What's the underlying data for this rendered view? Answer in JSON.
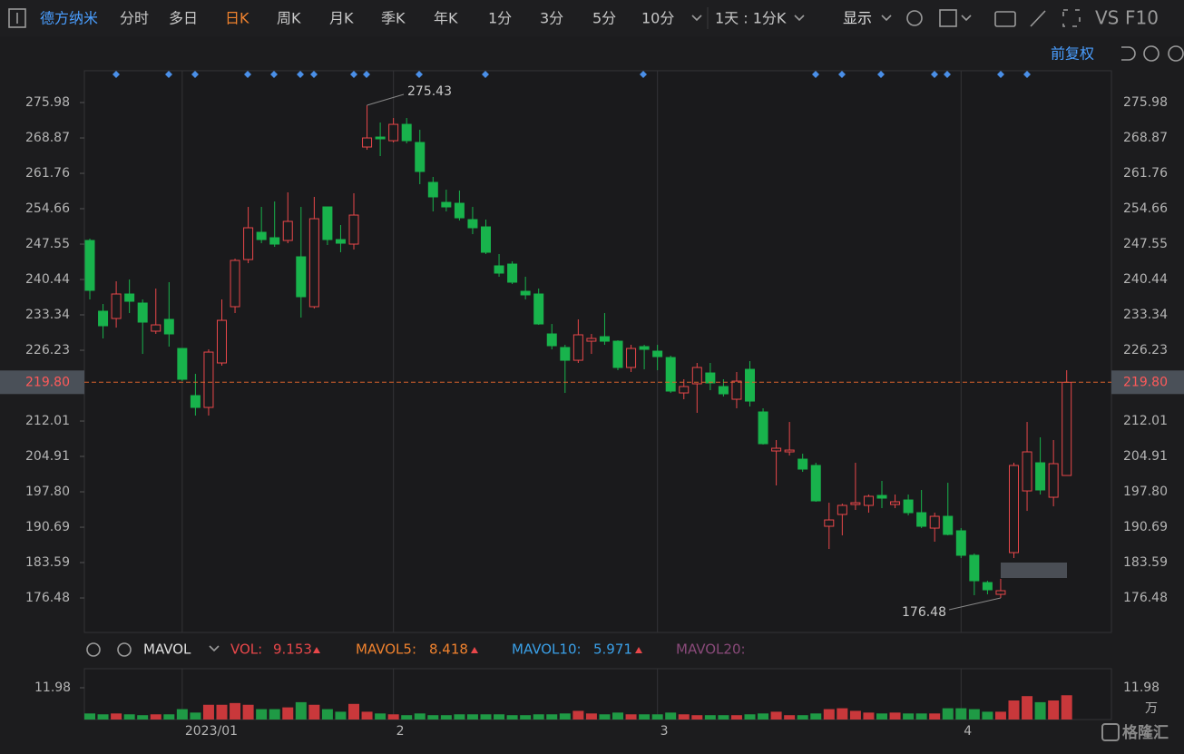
{
  "toolbar": {
    "stock_name": "德方纳米",
    "tabs": [
      "分时",
      "多日",
      "日K",
      "周K",
      "月K",
      "季K",
      "年K",
      "1分",
      "3分",
      "5分",
      "10分"
    ],
    "period": "1天 : 1分K",
    "display": "显示",
    "vs": "VS",
    "f10": "F10",
    "adjust": "前复权"
  },
  "chart_data": {
    "type": "candlestick",
    "categories": [
      null,
      null,
      null,
      null,
      null,
      null,
      null,
      "2023/01",
      null,
      null,
      null,
      null,
      null,
      null,
      null,
      null,
      null,
      null,
      null,
      null,
      null,
      null,
      null,
      "2",
      null,
      null,
      null,
      null,
      null,
      null,
      null,
      null,
      null,
      null,
      null,
      null,
      null,
      null,
      null,
      null,
      null,
      null,
      null,
      "3",
      null,
      null,
      null,
      null,
      null,
      null,
      null,
      null,
      null,
      null,
      null,
      null,
      null,
      null,
      null,
      null,
      null,
      null,
      null,
      null,
      null,
      null,
      "4",
      null,
      null,
      null,
      null,
      null,
      null,
      null,
      null
    ],
    "open": [
      248.28,
      234.07,
      232.61,
      237.53,
      235.71,
      230.06,
      232.43,
      226.59,
      217.12,
      214.75,
      223.68,
      234.98,
      244.45,
      249.92,
      248.83,
      248.28,
      245.0,
      234.98,
      255.02,
      248.46,
      247.55,
      267.05,
      269.05,
      268.32,
      271.6,
      267.96,
      259.94,
      255.93,
      255.75,
      252.47,
      251.01,
      243.18,
      243.54,
      238.07,
      237.53,
      229.51,
      226.78,
      224.22,
      228.05,
      228.96,
      228.05,
      222.77,
      226.96,
      226.05,
      224.77,
      217.66,
      219.49,
      221.67,
      218.94,
      216.39,
      222.4,
      213.84,
      206.0,
      205.82,
      204.36,
      203.09,
      190.88,
      193.25,
      195.25,
      195.07,
      197.07,
      195.25,
      196.16,
      193.61,
      190.51,
      192.88,
      189.97,
      185.05,
      179.58,
      177.21,
      185.59,
      197.98,
      203.63,
      196.71,
      201.08
    ],
    "high": [
      248.64,
      235.52,
      240.08,
      240.44,
      236.43,
      238.62,
      239.9,
      226.59,
      221.49,
      226.41,
      236.43,
      244.63,
      255.02,
      255.02,
      256.11,
      257.94,
      255.02,
      257.03,
      255.02,
      251.38,
      257.75,
      275.43,
      271.97,
      272.88,
      272.88,
      270.51,
      261.04,
      258.48,
      258.3,
      255.02,
      252.47,
      245.55,
      244.09,
      240.99,
      238.62,
      231.51,
      227.32,
      232.43,
      229.51,
      233.7,
      228.23,
      227.32,
      227.32,
      227.32,
      225.14,
      220.4,
      223.68,
      223.68,
      220.4,
      221.86,
      224.04,
      214.57,
      208.19,
      211.83,
      205.45,
      203.63,
      195.61,
      195.43,
      203.63,
      197.25,
      199.99,
      197.25,
      197.25,
      198.17,
      193.61,
      199.62,
      190.51,
      185.41,
      179.94,
      180.31,
      203.63,
      211.83,
      208.74,
      208.19,
      222.22
    ],
    "low": [
      236.43,
      228.6,
      230.78,
      233.7,
      225.5,
      229.51,
      226.96,
      220.03,
      213.11,
      213.11,
      223.13,
      233.7,
      243.72,
      247.73,
      247.0,
      247.73,
      232.79,
      234.61,
      247.37,
      245.91,
      246.46,
      266.5,
      265.23,
      267.96,
      267.78,
      259.58,
      254.11,
      254.11,
      252.29,
      249.55,
      245.55,
      240.99,
      239.53,
      236.43,
      231.33,
      226.41,
      217.66,
      223.68,
      225.5,
      227.32,
      222.22,
      221.86,
      222.4,
      222.22,
      217.66,
      216.39,
      213.66,
      218.21,
      216.94,
      214.57,
      214.93,
      207.28,
      199.08,
      205.09,
      201.81,
      195.8,
      186.32,
      189.05,
      194.16,
      193.61,
      194.52,
      194.52,
      193.06,
      190.51,
      187.78,
      189.05,
      184.5,
      177.03,
      177.21,
      176.48,
      184.5,
      193.97,
      197.25,
      194.89,
      201.08
    ],
    "close": [
      238.26,
      231.15,
      237.53,
      236.07,
      231.88,
      231.33,
      229.51,
      220.4,
      214.75,
      225.86,
      232.24,
      244.27,
      250.83,
      248.46,
      247.55,
      252.11,
      236.98,
      252.65,
      248.46,
      247.73,
      253.38,
      268.87,
      268.69,
      271.6,
      268.32,
      262.13,
      257.03,
      255.02,
      252.83,
      250.83,
      245.91,
      241.72,
      239.9,
      237.35,
      231.51,
      227.14,
      224.22,
      229.33,
      228.6,
      228.05,
      222.77,
      226.59,
      226.41,
      224.95,
      218.03,
      218.94,
      222.77,
      219.67,
      217.48,
      220.03,
      216.02,
      207.46,
      206.55,
      206.18,
      202.36,
      195.98,
      192.15,
      195.07,
      195.61,
      196.89,
      196.53,
      195.8,
      193.61,
      190.88,
      192.88,
      189.24,
      185.05,
      179.94,
      178.12,
      177.94,
      203.09,
      205.82,
      198.17,
      203.45,
      219.8
    ],
    "ylim": [
      169.56,
      282.36
    ],
    "yticks": [
      275.98,
      268.87,
      261.76,
      254.66,
      247.55,
      240.44,
      233.34,
      226.23,
      212.01,
      204.91,
      {
        "value": 197.8,
        "label": "197.80"
      },
      190.69,
      183.59,
      176.48
    ],
    "price_line": {
      "value": 219.8,
      "label": "219.80"
    },
    "up_color": "#e8474a",
    "down_color": "#18b34c",
    "volume": {
      "indicator": "MAVOL",
      "unit": "万",
      "ylim": [
        0,
        11.98
      ],
      "yticks": [
        11.98
      ],
      "values": [
        2.29,
        1.96,
        2.29,
        1.96,
        1.64,
        1.96,
        1.96,
        3.92,
        2.62,
        5.56,
        5.56,
        6.21,
        5.56,
        3.92,
        3.92,
        4.58,
        6.54,
        5.56,
        3.92,
        2.94,
        5.89,
        2.94,
        2.29,
        1.96,
        1.64,
        2.29,
        1.64,
        1.64,
        1.96,
        1.96,
        1.96,
        1.96,
        1.64,
        1.64,
        1.96,
        1.96,
        2.29,
        3.27,
        2.29,
        1.96,
        2.62,
        1.96,
        1.96,
        1.96,
        2.62,
        1.96,
        1.64,
        1.64,
        1.64,
        1.64,
        1.96,
        2.29,
        2.94,
        1.64,
        1.64,
        2.29,
        3.92,
        4.25,
        3.27,
        2.62,
        2.29,
        2.62,
        2.29,
        2.29,
        2.29,
        4.25,
        4.25,
        3.92,
        2.94,
        2.94,
        7.19,
        8.83,
        6.54,
        7.19,
        9.153
      ],
      "vol_label": "VOL:",
      "mavol5_label": "MAVOL5:",
      "mavol5": 8.418,
      "mavol10_label": "MAVOL10:",
      "mavol10": 5.971,
      "mavol20_label": "MAVOL20:"
    },
    "watermark": "格隆汇"
  }
}
